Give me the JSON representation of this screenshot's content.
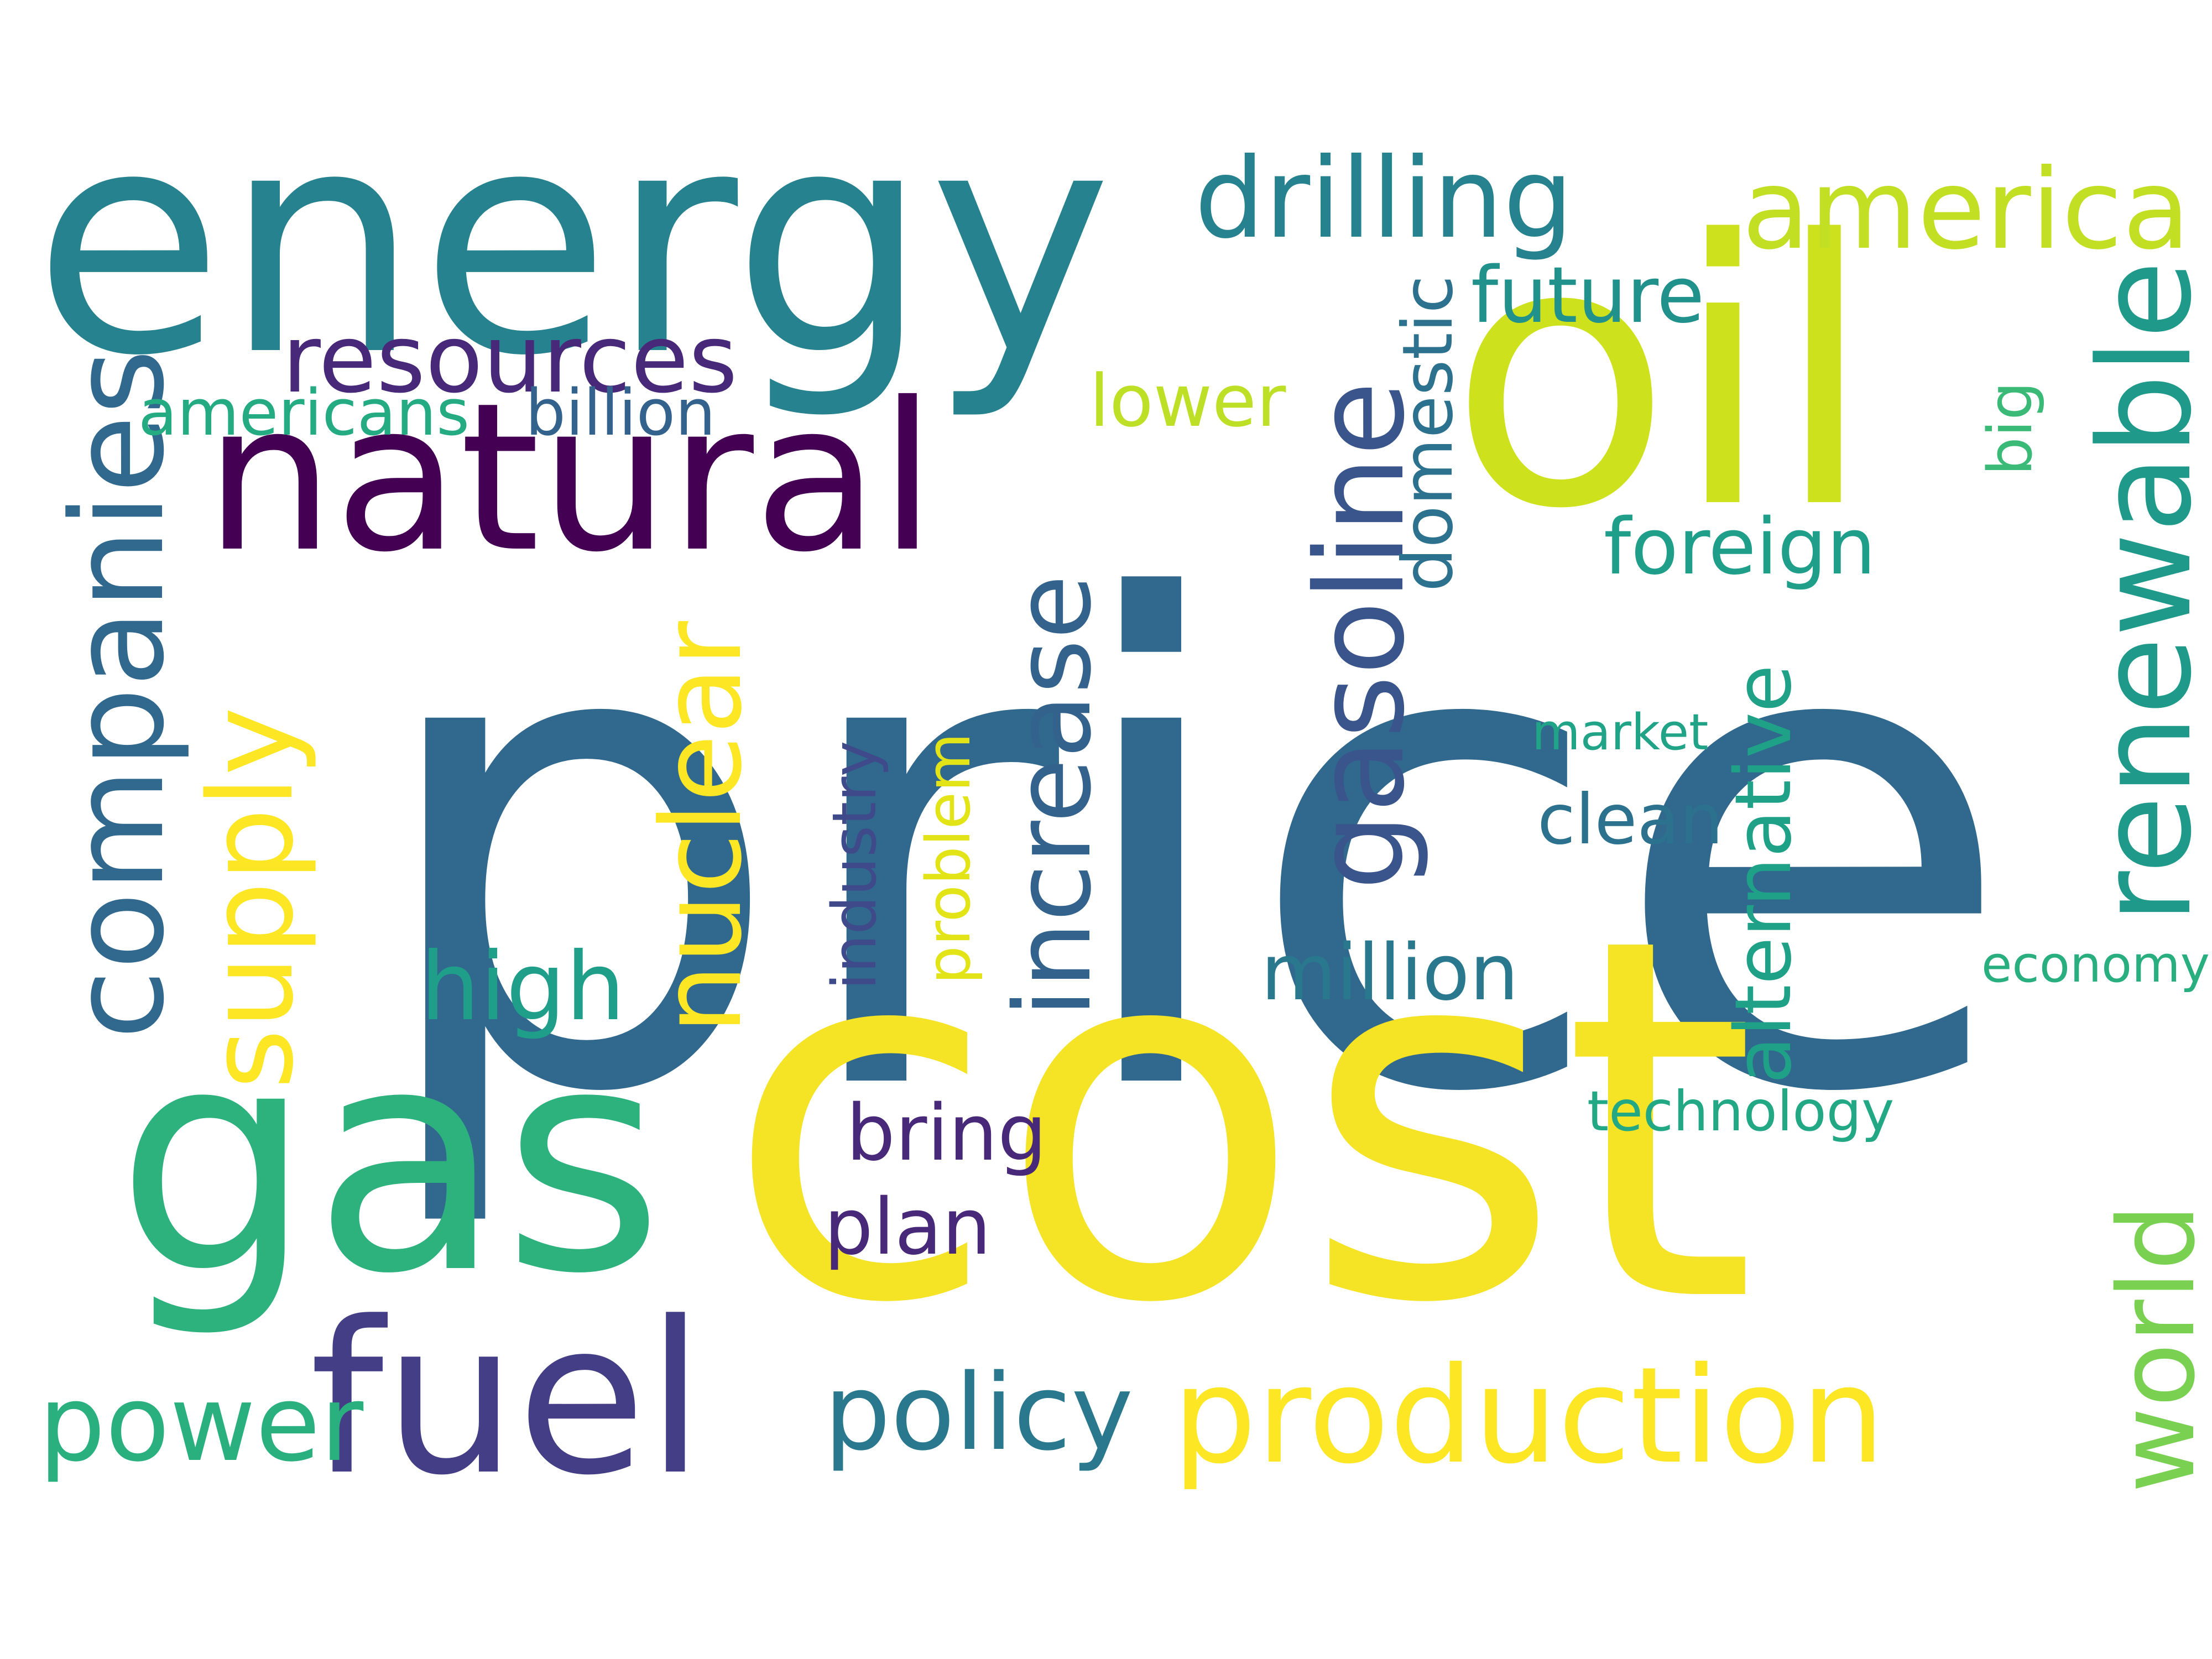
{
  "words": {
    "price": {
      "text": "price",
      "color": "#31688e"
    },
    "cost": {
      "text": "cost",
      "color": "#f5e325"
    },
    "energy": {
      "text": "energy",
      "color": "#26828e"
    },
    "oil": {
      "text": "oil",
      "color": "#cde11d"
    },
    "gas": {
      "text": "gas",
      "color": "#2db27d"
    },
    "natural": {
      "text": "natural",
      "color": "#440154"
    },
    "fuel": {
      "text": "fuel",
      "color": "#433e85"
    },
    "production": {
      "text": "production",
      "color": "#fde725"
    },
    "companies": {
      "text": "companies",
      "color": "#31688e"
    },
    "supply": {
      "text": "supply",
      "color": "#fde725"
    },
    "gasoline": {
      "text": "gasoline",
      "color": "#3a548c"
    },
    "renewable": {
      "text": "renewable",
      "color": "#1f998a"
    },
    "drilling": {
      "text": "drilling",
      "color": "#26828e"
    },
    "america": {
      "text": "america",
      "color": "#c2df23"
    },
    "nuclear": {
      "text": "nuclear",
      "color": "#fde725"
    },
    "increase": {
      "text": "increase",
      "color": "#33638d"
    },
    "resources": {
      "text": "resources",
      "color": "#482878"
    },
    "policy": {
      "text": "policy",
      "color": "#2a788e"
    },
    "power": {
      "text": "power",
      "color": "#2ab07f"
    },
    "world": {
      "text": "world",
      "color": "#7ad151"
    },
    "high": {
      "text": "high",
      "color": "#1f9e89"
    },
    "foreign": {
      "text": "foreign",
      "color": "#1f9e89"
    },
    "million": {
      "text": "million",
      "color": "#2a788e"
    },
    "bring": {
      "text": "bring",
      "color": "#482878"
    },
    "plan": {
      "text": "plan",
      "color": "#482878"
    },
    "future": {
      "text": "future",
      "color": "#21918c"
    },
    "alternative": {
      "text": "alternative",
      "color": "#1fa187"
    },
    "lower": {
      "text": "lower",
      "color": "#bddf26"
    },
    "domestic": {
      "text": "domestic",
      "color": "#2c728e"
    },
    "clean": {
      "text": "clean",
      "color": "#2c728e"
    },
    "americans": {
      "text": "americans",
      "color": "#25ab82"
    },
    "billion": {
      "text": "billion",
      "color": "#33638d"
    },
    "industry": {
      "text": "industry",
      "color": "#3e4a89"
    },
    "problem": {
      "text": "problem",
      "color": "#e2e418"
    },
    "big": {
      "text": "big",
      "color": "#3aba76"
    },
    "market": {
      "text": "market",
      "color": "#20a386"
    },
    "technology": {
      "text": "technology",
      "color": "#22a884"
    },
    "economy": {
      "text": "economy",
      "color": "#29af7f"
    }
  }
}
